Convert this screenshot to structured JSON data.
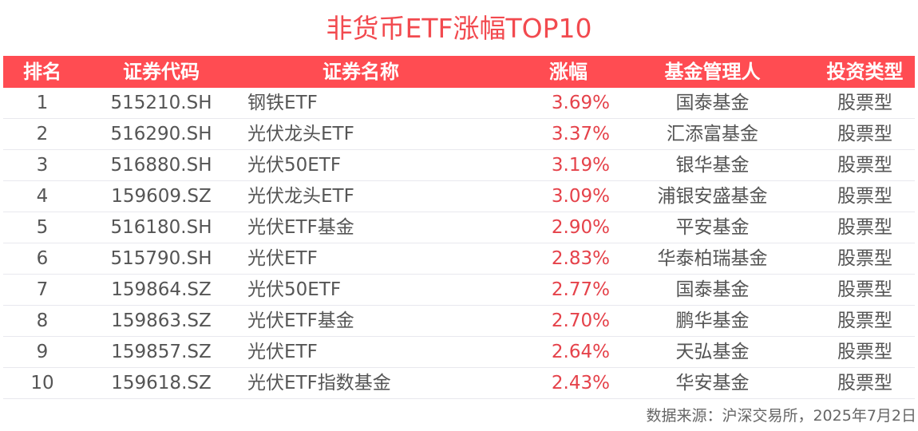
{
  "title": "非货币ETF涨幅TOP10",
  "colors": {
    "accent": "#ff4c52",
    "title": "#f24a4f",
    "gain": "#e5424a",
    "text": "#555555"
  },
  "table": {
    "headers": [
      "排名",
      "证券代码",
      "证券名称",
      "涨幅",
      "基金管理人",
      "投资类型"
    ],
    "rows": [
      {
        "rank": "1",
        "code": "515210.SH",
        "name": "钢铁ETF",
        "change": "3.69%",
        "manager": "国泰基金",
        "type": "股票型"
      },
      {
        "rank": "2",
        "code": "516290.SH",
        "name": "光伏龙头ETF",
        "change": "3.37%",
        "manager": "汇添富基金",
        "type": "股票型"
      },
      {
        "rank": "3",
        "code": "516880.SH",
        "name": "光伏50ETF",
        "change": "3.19%",
        "manager": "银华基金",
        "type": "股票型"
      },
      {
        "rank": "4",
        "code": "159609.SZ",
        "name": "光伏龙头ETF",
        "change": "3.09%",
        "manager": "浦银安盛基金",
        "type": "股票型"
      },
      {
        "rank": "5",
        "code": "516180.SH",
        "name": "光伏ETF基金",
        "change": "2.90%",
        "manager": "平安基金",
        "type": "股票型"
      },
      {
        "rank": "6",
        "code": "515790.SH",
        "name": "光伏ETF",
        "change": "2.83%",
        "manager": "华泰柏瑞基金",
        "type": "股票型"
      },
      {
        "rank": "7",
        "code": "159864.SZ",
        "name": "光伏50ETF",
        "change": "2.77%",
        "manager": "国泰基金",
        "type": "股票型"
      },
      {
        "rank": "8",
        "code": "159863.SZ",
        "name": "光伏ETF基金",
        "change": "2.70%",
        "manager": "鹏华基金",
        "type": "股票型"
      },
      {
        "rank": "9",
        "code": "159857.SZ",
        "name": "光伏ETF",
        "change": "2.64%",
        "manager": "天弘基金",
        "type": "股票型"
      },
      {
        "rank": "10",
        "code": "159618.SZ",
        "name": "光伏ETF指数基金",
        "change": "2.43%",
        "manager": "华安基金",
        "type": "股票型"
      }
    ]
  },
  "footer": {
    "source": "数据来源：沪深交易所，2025年7月2日"
  }
}
